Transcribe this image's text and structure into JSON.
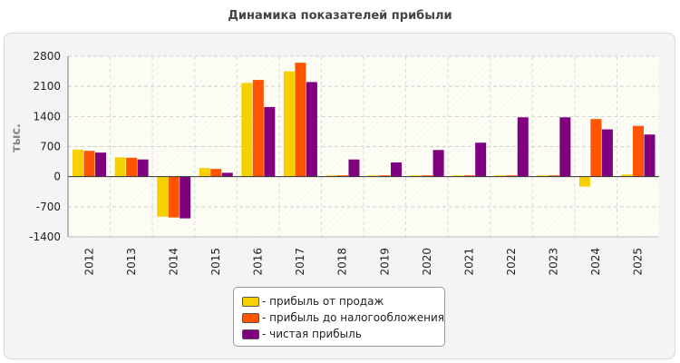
{
  "chart_data": {
    "type": "bar",
    "title": "Динамика показателей прибыли",
    "ylabel": "тыс.",
    "xlabel": "",
    "ylim": [
      -1400,
      2800
    ],
    "yticks": [
      "2800",
      "2100",
      "1400",
      "700",
      "0",
      "-700",
      "-1400"
    ],
    "ytick_values": [
      2800,
      2100,
      1400,
      700,
      0,
      -700,
      -1400
    ],
    "grid": true,
    "legend_placement": "bottom-center",
    "categories": [
      "2012",
      "2013",
      "2014",
      "2015",
      "2016",
      "2017",
      "2018",
      "2019",
      "2020",
      "2021",
      "2022",
      "2023",
      "2024",
      "2025"
    ],
    "series": [
      {
        "name": "- прибыль от продаж",
        "color": "#f7d000",
        "values": [
          630,
          450,
          -930,
          200,
          2180,
          2450,
          30,
          30,
          30,
          30,
          30,
          30,
          -230,
          50
        ]
      },
      {
        "name": "- прибыль до налогообложения",
        "color": "#ff5500",
        "values": [
          600,
          440,
          -950,
          180,
          2250,
          2650,
          30,
          30,
          30,
          30,
          30,
          30,
          1340,
          1180
        ]
      },
      {
        "name": "- чистая прибыль",
        "color": "#800080",
        "values": [
          560,
          400,
          -970,
          90,
          1620,
          2200,
          400,
          330,
          620,
          790,
          1380,
          1380,
          1100,
          980
        ]
      }
    ]
  }
}
